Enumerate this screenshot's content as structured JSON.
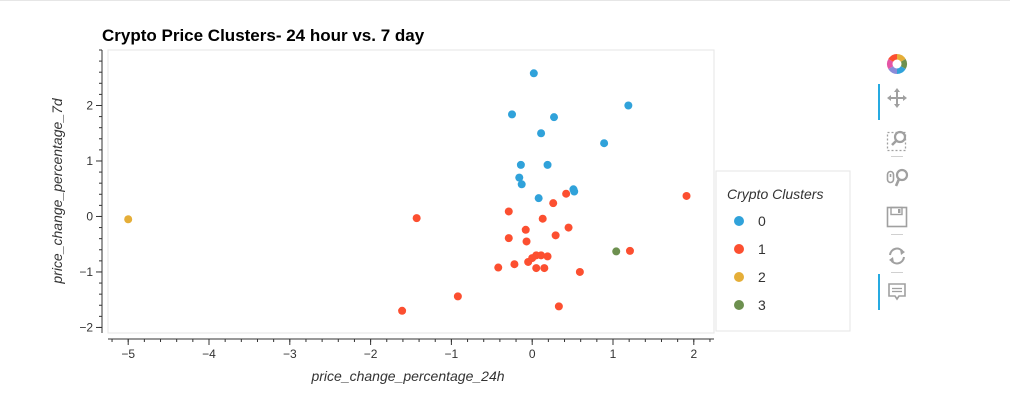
{
  "chart_data": {
    "type": "scatter",
    "title": "Crypto Price Clusters- 24 hour vs. 7 day",
    "xlabel": "price_change_percentage_24h",
    "ylabel": "price_change_percentage_7d",
    "xlim": [
      -5.25,
      2.25
    ],
    "ylim": [
      -2.1,
      3.0
    ],
    "x_ticks": [
      -5,
      -4,
      -3,
      -2,
      -1,
      0,
      1,
      2
    ],
    "y_ticks": [
      -2,
      -1,
      0,
      1,
      2
    ],
    "legend": {
      "title": "Crypto Clusters",
      "placement": "right"
    },
    "series": [
      {
        "name": "0",
        "color": "#30a2da",
        "points": [
          [
            0.02,
            2.58
          ],
          [
            1.19,
            2.0
          ],
          [
            -0.25,
            1.84
          ],
          [
            0.27,
            1.79
          ],
          [
            0.11,
            1.5
          ],
          [
            0.89,
            1.32
          ],
          [
            -0.14,
            0.93
          ],
          [
            0.19,
            0.93
          ],
          [
            -0.16,
            0.7
          ],
          [
            -0.13,
            0.58
          ],
          [
            0.51,
            0.49
          ],
          [
            0.52,
            0.45
          ],
          [
            0.08,
            0.33
          ]
        ]
      },
      {
        "name": "1",
        "color": "#fc4f30",
        "points": [
          [
            1.91,
            0.37
          ],
          [
            0.42,
            0.41
          ],
          [
            0.26,
            0.24
          ],
          [
            -0.29,
            0.09
          ],
          [
            -1.43,
            -0.03
          ],
          [
            0.13,
            -0.04
          ],
          [
            0.45,
            -0.2
          ],
          [
            -0.08,
            -0.24
          ],
          [
            0.29,
            -0.34
          ],
          [
            -0.29,
            -0.39
          ],
          [
            -0.07,
            -0.45
          ],
          [
            1.21,
            -0.62
          ],
          [
            0.05,
            -0.7
          ],
          [
            0.11,
            -0.7
          ],
          [
            0.19,
            -0.72
          ],
          [
            0.0,
            -0.75
          ],
          [
            -0.05,
            -0.82
          ],
          [
            -0.22,
            -0.86
          ],
          [
            -0.42,
            -0.92
          ],
          [
            0.05,
            -0.93
          ],
          [
            0.15,
            -0.93
          ],
          [
            0.59,
            -1.0
          ],
          [
            -0.92,
            -1.44
          ],
          [
            0.33,
            -1.62
          ],
          [
            -1.61,
            -1.7
          ]
        ]
      },
      {
        "name": "2",
        "color": "#e5ae38",
        "points": [
          [
            -5.0,
            -0.05
          ]
        ]
      },
      {
        "name": "3",
        "color": "#6d904f",
        "points": [
          [
            1.04,
            -0.63
          ]
        ]
      }
    ]
  },
  "toolbar": {
    "tools": [
      {
        "icon": "bokeh-logo-icon"
      },
      {
        "icon": "pan-icon",
        "active": true
      },
      {
        "icon": "box-zoom-icon"
      },
      {
        "icon": "wheel-zoom-icon"
      },
      {
        "icon": "save-icon"
      },
      {
        "icon": "reset-icon"
      },
      {
        "icon": "hover-icon",
        "active": true
      }
    ]
  }
}
